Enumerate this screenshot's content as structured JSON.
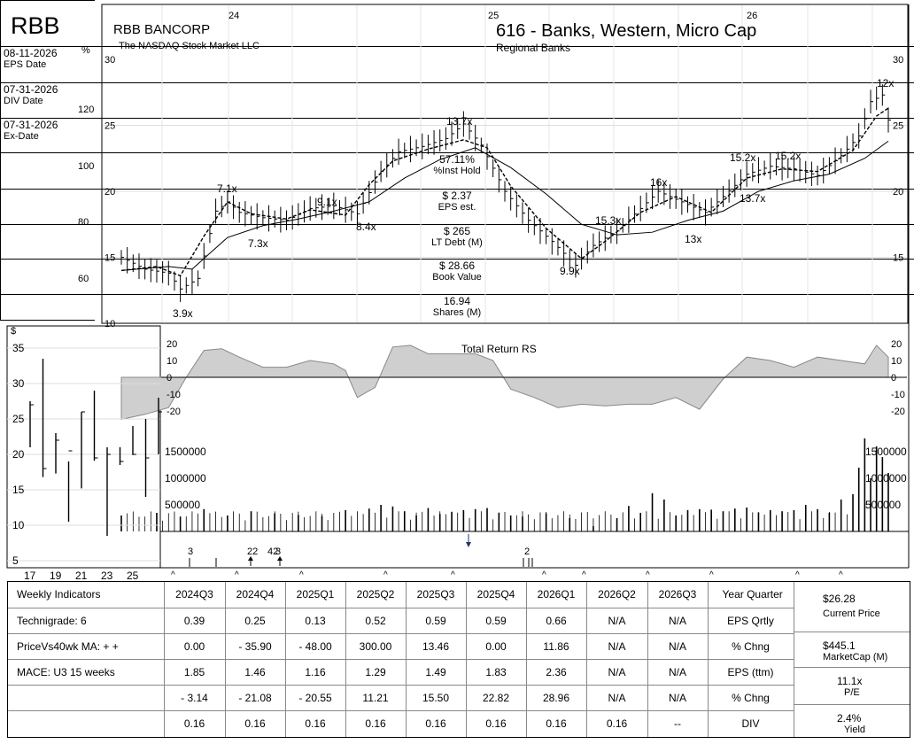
{
  "header": {
    "ticker": "RBB",
    "company": "RBB BANCORP",
    "exchange": "The NASDAQ Stock Market LLC",
    "industry": "616 - Banks, Western, Micro Cap",
    "sector": "Regional Banks",
    "year_labels": [
      "24",
      "25",
      "26"
    ],
    "pct_symbol": "%",
    "dollar_symbol": "$"
  },
  "sidebar": [
    {
      "value": "08-11-2026",
      "label": "EPS Date"
    },
    {
      "value": "07-31-2026",
      "label": "DIV Date"
    },
    {
      "value": "07-31-2026",
      "label": "Ex-Date"
    },
    {
      "value": "57.11%",
      "label": "%Inst Hold"
    },
    {
      "value": "$ 2.37",
      "label": "EPS est."
    },
    {
      "value": "$ 265",
      "label": "LT Debt (M)"
    },
    {
      "value": "$ 28.66",
      "label": "Book Value"
    },
    {
      "value": "16.94",
      "label": "Shares (M)"
    }
  ],
  "chart_data": [
    {
      "type": "line",
      "title": "",
      "frequency": "weekly price bars with moving averages",
      "y_ticks_right": [
        10,
        15,
        20,
        25,
        30
      ],
      "y_ticks_pct": [
        60,
        80,
        100,
        120
      ],
      "ylim": [
        10,
        30
      ],
      "x_labels": [
        "24",
        "25",
        "26"
      ],
      "close_path": [
        [
          0,
          15
        ],
        [
          4,
          14.1
        ],
        [
          8,
          13.8
        ],
        [
          10,
          12.6
        ],
        [
          13,
          13.4
        ],
        [
          16,
          18.5
        ],
        [
          18,
          19.2
        ],
        [
          20,
          18.4
        ],
        [
          24,
          18
        ],
        [
          28,
          17.8
        ],
        [
          32,
          18.7
        ],
        [
          36,
          18.9
        ],
        [
          40,
          18.3
        ],
        [
          44,
          21.5
        ],
        [
          47,
          23
        ],
        [
          51,
          23.4
        ],
        [
          55,
          24
        ],
        [
          58,
          25.1
        ],
        [
          61,
          23.5
        ],
        [
          65,
          20
        ],
        [
          69,
          17.8
        ],
        [
          73,
          16.2
        ],
        [
          77,
          14.4
        ],
        [
          80,
          15.9
        ],
        [
          84,
          17
        ],
        [
          88,
          18.7
        ],
        [
          91,
          20
        ],
        [
          95,
          19.2
        ],
        [
          99,
          18.4
        ],
        [
          102,
          19.6
        ],
        [
          106,
          21.3
        ],
        [
          110,
          21.9
        ],
        [
          114,
          21.7
        ],
        [
          118,
          21.2
        ],
        [
          122,
          22.7
        ],
        [
          125,
          24.2
        ],
        [
          127,
          26.8
        ],
        [
          129,
          27.3
        ],
        [
          130,
          25.4
        ]
      ],
      "ma_short": [
        [
          0,
          14
        ],
        [
          6,
          14.3
        ],
        [
          10,
          13.6
        ],
        [
          14,
          16.6
        ],
        [
          18,
          19.2
        ],
        [
          22,
          18.3
        ],
        [
          28,
          17.9
        ],
        [
          32,
          18.6
        ],
        [
          38,
          18.2
        ],
        [
          42,
          20.5
        ],
        [
          46,
          22.3
        ],
        [
          52,
          23.2
        ],
        [
          58,
          23.9
        ],
        [
          62,
          23.3
        ],
        [
          66,
          20.4
        ],
        [
          72,
          17.2
        ],
        [
          78,
          14.9
        ],
        [
          82,
          16.2
        ],
        [
          88,
          18.4
        ],
        [
          94,
          19.6
        ],
        [
          100,
          18.4
        ],
        [
          106,
          21
        ],
        [
          112,
          21.7
        ],
        [
          118,
          21.5
        ],
        [
          124,
          23.1
        ],
        [
          128,
          25.7
        ],
        [
          130,
          26.3
        ]
      ],
      "ma_long": [
        [
          0,
          14
        ],
        [
          8,
          14.3
        ],
        [
          12,
          14.1
        ],
        [
          18,
          16.5
        ],
        [
          24,
          17.4
        ],
        [
          30,
          17.9
        ],
        [
          36,
          18.5
        ],
        [
          42,
          19.2
        ],
        [
          48,
          21
        ],
        [
          54,
          22.4
        ],
        [
          60,
          23.3
        ],
        [
          66,
          21.8
        ],
        [
          72,
          19.8
        ],
        [
          78,
          17.5
        ],
        [
          84,
          16.7
        ],
        [
          90,
          16.9
        ],
        [
          96,
          17.8
        ],
        [
          102,
          18.5
        ],
        [
          108,
          20
        ],
        [
          114,
          20.8
        ],
        [
          120,
          21.3
        ],
        [
          126,
          22.5
        ],
        [
          130,
          23.8
        ]
      ],
      "annotations": [
        "3.9x",
        "7.1x",
        "7.3x",
        "9.1x",
        "8.4x",
        "13.7x",
        "9.9x",
        "15.3x",
        "16x",
        "13x",
        "15.2x",
        "13.7x",
        "15.2x",
        "12x"
      ]
    },
    {
      "type": "area",
      "title": "Total Return RS",
      "y_ticks": [
        -20,
        -10,
        0,
        10,
        20
      ],
      "ylim": [
        -28,
        26
      ],
      "x": [
        0,
        4,
        8,
        11,
        14,
        17,
        20,
        24,
        28,
        32,
        36,
        38,
        40,
        43,
        46,
        49,
        52,
        56,
        60,
        63,
        66,
        70,
        74,
        78,
        82,
        86,
        90,
        94,
        98,
        102,
        106,
        110,
        114,
        118,
        122,
        126,
        128,
        130
      ],
      "values": [
        -25,
        -22,
        -18,
        0,
        16,
        17,
        12,
        6,
        6,
        10,
        8,
        4,
        -12,
        -6,
        18,
        19,
        14,
        14,
        14,
        10,
        -7,
        -12,
        -18,
        -16,
        -17,
        -16,
        -16,
        -12,
        -19,
        -1,
        12,
        10,
        6,
        12,
        10,
        8,
        19,
        12
      ]
    },
    {
      "type": "bar",
      "title": "",
      "y_ticks": [
        500000,
        1000000,
        1500000
      ],
      "y_tick_labels": [
        "500000",
        "1000000",
        "1500000"
      ],
      "ylim": [
        0,
        1700000
      ],
      "x": [
        0,
        6,
        10,
        14,
        18,
        22,
        26,
        30,
        34,
        38,
        42,
        44,
        46,
        48,
        50,
        52,
        54,
        56,
        58,
        60,
        62,
        64,
        66,
        68,
        72,
        76,
        80,
        84,
        86,
        88,
        90,
        92,
        94,
        96,
        98,
        100,
        102,
        104,
        106,
        108,
        110,
        112,
        114,
        116,
        118,
        120,
        122,
        124,
        125,
        126,
        127,
        128,
        129,
        130
      ],
      "values": [
        300000,
        350000,
        280000,
        420000,
        300000,
        380000,
        340000,
        310000,
        290000,
        400000,
        430000,
        500000,
        470000,
        380000,
        300000,
        440000,
        330000,
        370000,
        400000,
        420000,
        440000,
        350000,
        300000,
        280000,
        340000,
        250000,
        100000,
        250000,
        480000,
        350000,
        720000,
        600000,
        300000,
        400000,
        420000,
        410000,
        380000,
        430000,
        450000,
        360000,
        400000,
        380000,
        400000,
        500000,
        420000,
        350000,
        600000,
        700000,
        1200000,
        1750000,
        1000000,
        1600000,
        1400000,
        1100000
      ]
    },
    {
      "type": "bar",
      "title": "",
      "frequency": "annual high-low-close bars",
      "y_ticks": [
        5,
        10,
        15,
        20,
        25,
        30,
        35
      ],
      "ylim": [
        4,
        37
      ],
      "x_labels": [
        "17",
        "19",
        "21",
        "23",
        "25"
      ],
      "x": [
        16,
        17,
        18,
        19,
        20,
        21,
        22,
        23,
        24,
        25,
        26
      ],
      "high": [
        27.5,
        33.5,
        23,
        19,
        26,
        29,
        21,
        21,
        24,
        25,
        28
      ],
      "low": [
        21,
        16.8,
        17.3,
        10.5,
        15.2,
        19.1,
        8.5,
        18.5,
        19.9,
        14,
        20
      ],
      "close": [
        27,
        18,
        22,
        20.5,
        26,
        19.5,
        20,
        19,
        20,
        19.5,
        26
      ]
    }
  ],
  "events": {
    "labels": [
      "3",
      "22",
      "42",
      "3",
      "2"
    ]
  },
  "table": {
    "header": [
      "Weekly Indicators",
      "2024Q3",
      "2024Q4",
      "2025Q1",
      "2025Q2",
      "2025Q3",
      "2025Q4",
      "2026Q1",
      "2026Q2",
      "2026Q3",
      "Year Quarter"
    ],
    "rows": [
      {
        "label": "Technigrade: 6",
        "values": [
          "0.39",
          "0.25",
          "0.13",
          "0.52",
          "0.59",
          "0.59",
          "0.66",
          "N/A",
          "N/A"
        ],
        "metric": "EPS Qrtly"
      },
      {
        "label": "PriceVs40wk MA:  + +",
        "values": [
          "0.00",
          "- 35.90",
          "- 48.00",
          "300.00",
          "13.46",
          "0.00",
          "11.86",
          "N/A",
          "N/A"
        ],
        "metric": "% Chng"
      },
      {
        "label": "MACE: U3  15 weeks",
        "values": [
          "1.85",
          "1.46",
          "1.16",
          "1.29",
          "1.49",
          "1.83",
          "2.36",
          "N/A",
          "N/A"
        ],
        "metric": "EPS (ttm)"
      },
      {
        "label": "",
        "values": [
          "- 3.14",
          "- 21.08",
          "- 20.55",
          "11.21",
          "15.50",
          "22.82",
          "28.96",
          "N/A",
          "N/A"
        ],
        "metric": "% Chng"
      },
      {
        "label": "",
        "values": [
          "0.16",
          "0.16",
          "0.16",
          "0.16",
          "0.16",
          "0.16",
          "0.16",
          "0.16",
          "--"
        ],
        "metric": "DIV"
      }
    ],
    "summary": [
      {
        "value": "$26.28",
        "label": "Current Price"
      },
      {
        "value": "$445.1",
        "label": "MarketCap (M)"
      },
      {
        "value": "11.1x",
        "label": "P/E"
      },
      {
        "value": "2.4%",
        "label": "Yield"
      }
    ]
  }
}
